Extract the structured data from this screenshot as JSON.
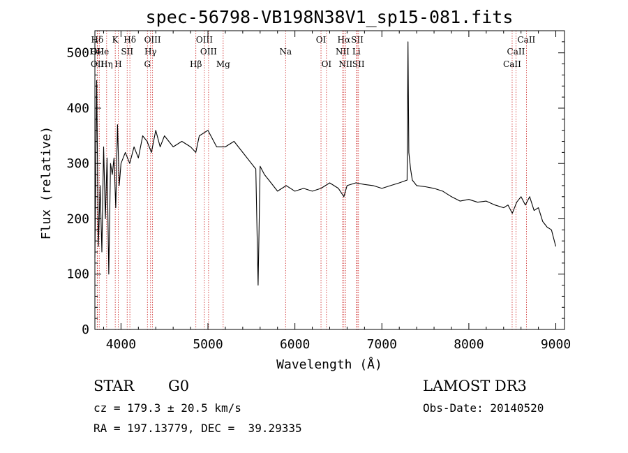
{
  "chart_data": {
    "type": "line",
    "title": "spec-56798-VB198N38V1_sp15-081.fits",
    "xlabel": "Wavelength (Å)",
    "ylabel": "Flux (relative)",
    "xlim": [
      3700,
      9100
    ],
    "ylim": [
      0,
      540
    ],
    "xticks": [
      4000,
      5000,
      6000,
      7000,
      8000,
      9000
    ],
    "yticks": [
      0,
      100,
      200,
      300,
      400,
      500
    ],
    "grid": false,
    "series": [
      {
        "name": "spectrum",
        "x": [
          3700,
          3720,
          3740,
          3760,
          3780,
          3800,
          3820,
          3840,
          3860,
          3880,
          3900,
          3920,
          3940,
          3960,
          3980,
          4000,
          4050,
          4100,
          4150,
          4200,
          4250,
          4300,
          4350,
          4400,
          4450,
          4500,
          4600,
          4700,
          4800,
          4860,
          4900,
          5000,
          5100,
          5200,
          5300,
          5400,
          5500,
          5550,
          5577,
          5600,
          5650,
          5700,
          5800,
          5900,
          6000,
          6100,
          6200,
          6300,
          6400,
          6500,
          6563,
          6600,
          6700,
          6800,
          6900,
          7000,
          7100,
          7200,
          7290,
          7300,
          7310,
          7330,
          7350,
          7400,
          7500,
          7600,
          7700,
          7800,
          7900,
          8000,
          8100,
          8200,
          8300,
          8400,
          8450,
          8500,
          8550,
          8600,
          8650,
          8700,
          8750,
          8800,
          8850,
          8900,
          8950,
          9000
        ],
        "y": [
          130,
          450,
          150,
          260,
          140,
          330,
          200,
          310,
          100,
          300,
          280,
          310,
          220,
          370,
          260,
          300,
          320,
          300,
          330,
          310,
          350,
          340,
          320,
          360,
          330,
          350,
          330,
          340,
          330,
          320,
          350,
          360,
          330,
          330,
          340,
          320,
          300,
          290,
          80,
          295,
          280,
          270,
          250,
          260,
          250,
          255,
          250,
          255,
          265,
          255,
          240,
          260,
          265,
          262,
          260,
          255,
          260,
          265,
          270,
          520,
          320,
          290,
          270,
          260,
          258,
          255,
          250,
          240,
          232,
          235,
          230,
          232,
          225,
          220,
          225,
          210,
          230,
          240,
          225,
          240,
          215,
          220,
          195,
          185,
          180,
          150
        ]
      }
    ],
    "lines": [
      {
        "label": "Hδ",
        "x": 3727
      },
      {
        "label": "K",
        "x": 3934
      },
      {
        "label": "Hδ",
        "x": 4102
      },
      {
        "label": "OIII",
        "x": 4363
      },
      {
        "label": "OIII",
        "x": 4959
      },
      {
        "label": "OI",
        "x": 6300
      },
      {
        "label": "Hα",
        "x": 6563
      },
      {
        "label": "SII",
        "x": 6717
      },
      {
        "label": "CaII",
        "x": 8662
      },
      {
        "label": "OII",
        "x": 3727
      },
      {
        "label": "HHe",
        "x": 3750
      },
      {
        "label": "SII",
        "x": 4071
      },
      {
        "label": "Hγ",
        "x": 4340
      },
      {
        "label": "OIII",
        "x": 5007
      },
      {
        "label": "Na",
        "x": 5893
      },
      {
        "label": "NII",
        "x": 6548
      },
      {
        "label": "Li",
        "x": 6707
      },
      {
        "label": "CaII",
        "x": 8542
      },
      {
        "label": "OII",
        "x": 3729
      },
      {
        "label": "Hη",
        "x": 3835
      },
      {
        "label": "H",
        "x": 3969
      },
      {
        "label": "G",
        "x": 4304
      },
      {
        "label": "Hβ",
        "x": 4861
      },
      {
        "label": "Mg",
        "x": 5175
      },
      {
        "label": "OI",
        "x": 6363
      },
      {
        "label": "NII",
        "x": 6583
      },
      {
        "label": "SII",
        "x": 6731
      },
      {
        "label": "CaII",
        "x": 8498
      }
    ]
  },
  "info": {
    "class": "STAR",
    "subclass": "G0",
    "survey": "LAMOST DR3",
    "cz": "cz = 179.3 ± 20.5 km/s",
    "obs_date": "Obs-Date: 20140520",
    "coords": "RA = 197.13779, DEC =  39.29335"
  }
}
